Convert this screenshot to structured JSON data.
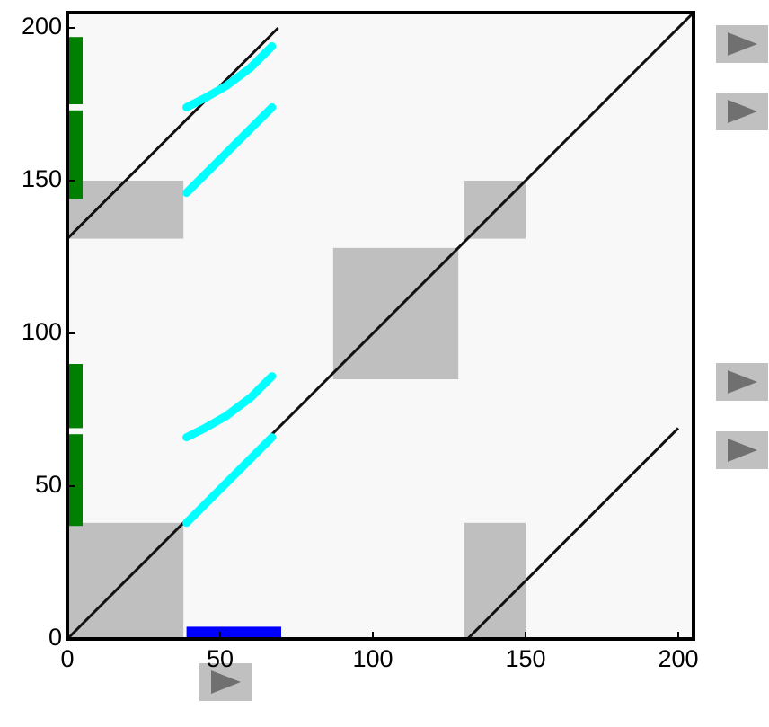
{
  "chart_data": {
    "type": "recurrence",
    "xlim": [
      0,
      205
    ],
    "ylim": [
      0,
      205
    ],
    "xticks": [
      0,
      50,
      100,
      150,
      200
    ],
    "yticks": [
      0,
      50,
      100,
      150,
      200
    ],
    "blocks": [
      {
        "x": [
          0,
          38
        ],
        "y": [
          0,
          38
        ]
      },
      {
        "x": [
          0,
          38
        ],
        "y": [
          131,
          150
        ]
      },
      {
        "x": [
          87,
          128
        ],
        "y": [
          85,
          128
        ]
      },
      {
        "x": [
          130,
          150
        ],
        "y": [
          0,
          38
        ]
      },
      {
        "x": [
          130,
          150
        ],
        "y": [
          131,
          150
        ]
      }
    ],
    "diagonals": [
      {
        "x": [
          0,
          205
        ],
        "y": [
          0,
          205
        ]
      },
      {
        "x": [
          0,
          69
        ],
        "y": [
          131,
          200
        ]
      },
      {
        "x": [
          131,
          200
        ],
        "y": [
          0,
          69
        ]
      }
    ],
    "bars": [
      {
        "color": "#008000",
        "x": [
          0,
          5
        ],
        "y": [
          175,
          197
        ]
      },
      {
        "color": "#008000",
        "x": [
          0,
          5
        ],
        "y": [
          144,
          173
        ]
      },
      {
        "color": "#008000",
        "x": [
          0,
          5
        ],
        "y": [
          69,
          90
        ]
      },
      {
        "color": "#008000",
        "x": [
          0,
          5
        ],
        "y": [
          37,
          67
        ]
      },
      {
        "color": "#0000ff",
        "x": [
          39,
          70
        ],
        "y": [
          0,
          4
        ]
      }
    ],
    "curves": [
      {
        "color": "#00ffff",
        "x": [
          39,
          45,
          52,
          60,
          67
        ],
        "y": [
          174,
          177,
          181,
          187,
          194
        ]
      },
      {
        "color": "#00ffff",
        "x": [
          39,
          46,
          53,
          60,
          67
        ],
        "y": [
          146,
          153,
          160,
          167,
          174
        ]
      },
      {
        "color": "#00ffff",
        "x": [
          39,
          45,
          52,
          60,
          67
        ],
        "y": [
          66,
          69,
          73,
          79,
          86
        ]
      },
      {
        "color": "#00ffff",
        "x": [
          39,
          46,
          53,
          60,
          67
        ],
        "y": [
          38,
          45,
          52,
          59,
          66
        ]
      }
    ]
  }
}
